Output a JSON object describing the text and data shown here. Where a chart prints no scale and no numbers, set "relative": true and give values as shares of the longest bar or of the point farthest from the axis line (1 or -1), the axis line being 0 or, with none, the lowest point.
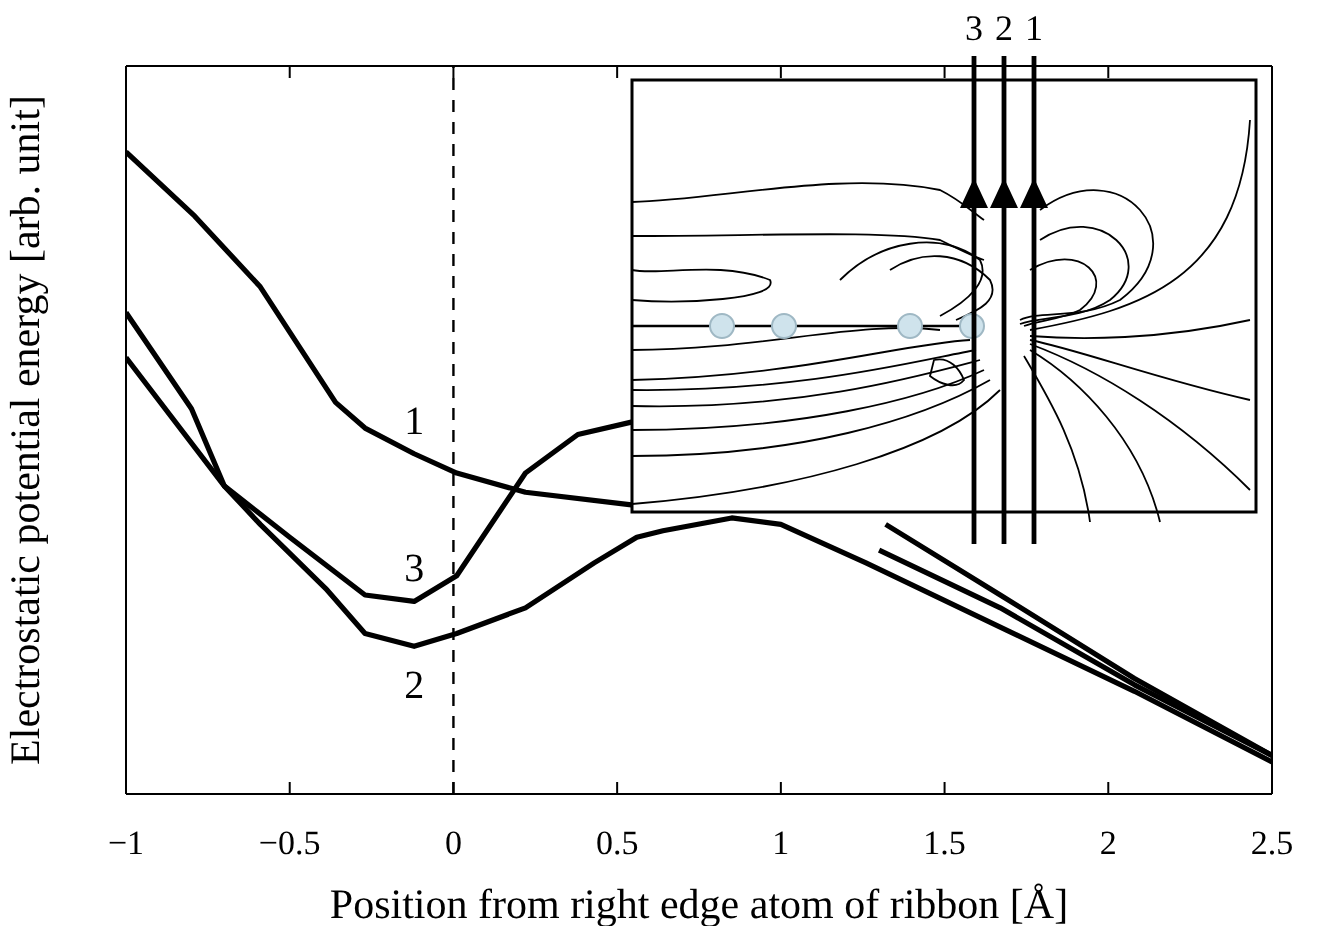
{
  "chart_data": {
    "type": "line",
    "xlabel": "Position from right edge atom of ribbon [Å]",
    "ylabel": "Electrostatic potential energy [arb. unit]",
    "relative": true,
    "xlim": [
      -1,
      2.5
    ],
    "xticks": [
      {
        "value": -1,
        "label": "−1"
      },
      {
        "value": -0.5,
        "label": "−0.5"
      },
      0,
      0.5,
      1,
      1.5,
      2,
      2.5
    ],
    "legend": false,
    "grid": false,
    "marker": "none",
    "line_style": "solid",
    "series": [
      {
        "name": "1",
        "color": "#000000",
        "x": [
          -1,
          -0.79,
          -0.59,
          -0.36,
          -0.27,
          -0.12,
          0.01,
          0.22,
          0.55,
          0.9,
          1.32,
          1.67,
          2.08,
          2.5
        ],
        "values": [
          1,
          0.9,
          0.79,
          0.61,
          0.57,
          0.53,
          0.5,
          0.47,
          0.45,
          null,
          0.42,
          0.31,
          0.18,
          0.06
        ]
      },
      {
        "name": "2",
        "color": "#000000",
        "x": [
          -1,
          -0.7,
          -0.59,
          -0.39,
          -0.27,
          -0.12,
          0.01,
          0.22,
          0.43,
          0.56,
          0.64,
          0.85,
          1,
          1.26,
          1.67,
          2.08,
          2.5
        ],
        "values": [
          0.68,
          0.48,
          0.42,
          0.32,
          0.25,
          0.23,
          0.25,
          0.29,
          0.36,
          0.4,
          0.41,
          0.43,
          0.42,
          0.36,
          0.26,
          0.16,
          0.05
        ]
      },
      {
        "name": "3",
        "color": "#000000",
        "x": [
          -1,
          -0.8,
          -0.7,
          -0.5,
          -0.27,
          -0.12,
          0.01,
          0.22,
          0.38,
          0.55,
          0.9,
          1.3,
          1.67,
          2.08,
          2.5
        ],
        "values": [
          0.75,
          0.6,
          0.48,
          0.4,
          0.31,
          0.3,
          0.34,
          0.5,
          0.56,
          0.58,
          null,
          0.38,
          0.29,
          0.17,
          0.06
        ]
      }
    ],
    "ref_lines": [
      {
        "axis": "x",
        "value": 0,
        "color": "#000000",
        "line_style": "dashed"
      }
    ],
    "annotations": [
      "3",
      "2",
      "1"
    ]
  }
}
